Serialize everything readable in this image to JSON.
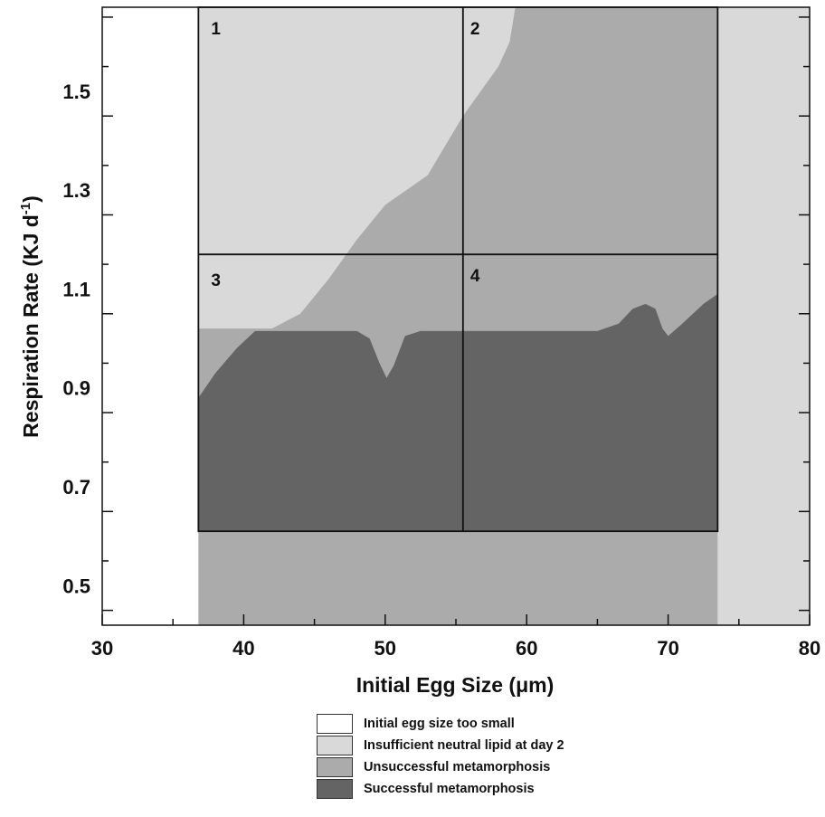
{
  "chart_data": {
    "type": "area",
    "xlabel": "Initial Egg Size (μm)",
    "ylabel_main": "Respiration Rate (KJ d",
    "ylabel_sup": "-1",
    "ylabel_close": ")",
    "xlim": [
      30,
      80
    ],
    "ylim": [
      0.42,
      1.67
    ],
    "x_ticks": [
      30,
      40,
      50,
      60,
      70,
      80
    ],
    "x_tick_labels": [
      "30",
      "40",
      "50",
      "60",
      "70",
      "80"
    ],
    "y_ticks": [
      0.5,
      0.7,
      0.9,
      1.1,
      1.3,
      1.5
    ],
    "y_tick_labels": [
      "0.5",
      "0.7",
      "0.9",
      "1.1",
      "1.3",
      "1.5"
    ],
    "region_bounds": {
      "min_egg_size": 36.8,
      "max_egg_size": 73.5,
      "box_y_min": 0.61,
      "box_y_max": 1.67,
      "x_split": 55.5,
      "y_split": 1.17
    },
    "successful_boundary": [
      [
        36.8,
        0.88
      ],
      [
        38.0,
        0.93
      ],
      [
        39.5,
        0.98
      ],
      [
        40.8,
        1.015
      ],
      [
        44.0,
        1.015
      ],
      [
        48.0,
        1.015
      ],
      [
        48.9,
        1.0
      ],
      [
        49.6,
        0.95
      ],
      [
        50.1,
        0.92
      ],
      [
        50.6,
        0.945
      ],
      [
        51.4,
        1.005
      ],
      [
        52.5,
        1.015
      ],
      [
        60.0,
        1.015
      ],
      [
        65.0,
        1.015
      ],
      [
        66.5,
        1.03
      ],
      [
        67.5,
        1.06
      ],
      [
        68.4,
        1.07
      ],
      [
        69.1,
        1.06
      ],
      [
        69.6,
        1.02
      ],
      [
        70.0,
        1.005
      ],
      [
        71.0,
        1.03
      ],
      [
        72.5,
        1.07
      ],
      [
        73.5,
        1.09
      ]
    ],
    "lipid_boundary": [
      [
        36.8,
        1.02
      ],
      [
        40.0,
        1.02
      ],
      [
        42.0,
        1.02
      ],
      [
        44.0,
        1.05
      ],
      [
        46.0,
        1.12
      ],
      [
        48.0,
        1.2
      ],
      [
        50.0,
        1.27
      ],
      [
        51.5,
        1.3
      ],
      [
        53.0,
        1.33
      ],
      [
        55.5,
        1.45
      ],
      [
        57.0,
        1.51
      ],
      [
        58.0,
        1.55
      ],
      [
        58.8,
        1.6
      ],
      [
        59.2,
        1.67
      ]
    ],
    "quadrant_labels": [
      "1",
      "2",
      "3",
      "4"
    ],
    "legend": [
      {
        "label": "Initial egg size too small",
        "color": "#ffffff"
      },
      {
        "label": "Insufficient neutral lipid at day 2",
        "color": "#d9d9d9"
      },
      {
        "label": "Unsuccessful metamorphosis",
        "color": "#ababab"
      },
      {
        "label": "Successful metamorphosis",
        "color": "#646464"
      }
    ],
    "colors": {
      "too_small": "#ffffff",
      "lipid": "#d9d9d9",
      "unsuccessful": "#ababab",
      "successful": "#646464",
      "outside_right": "#d9d9d9"
    }
  }
}
